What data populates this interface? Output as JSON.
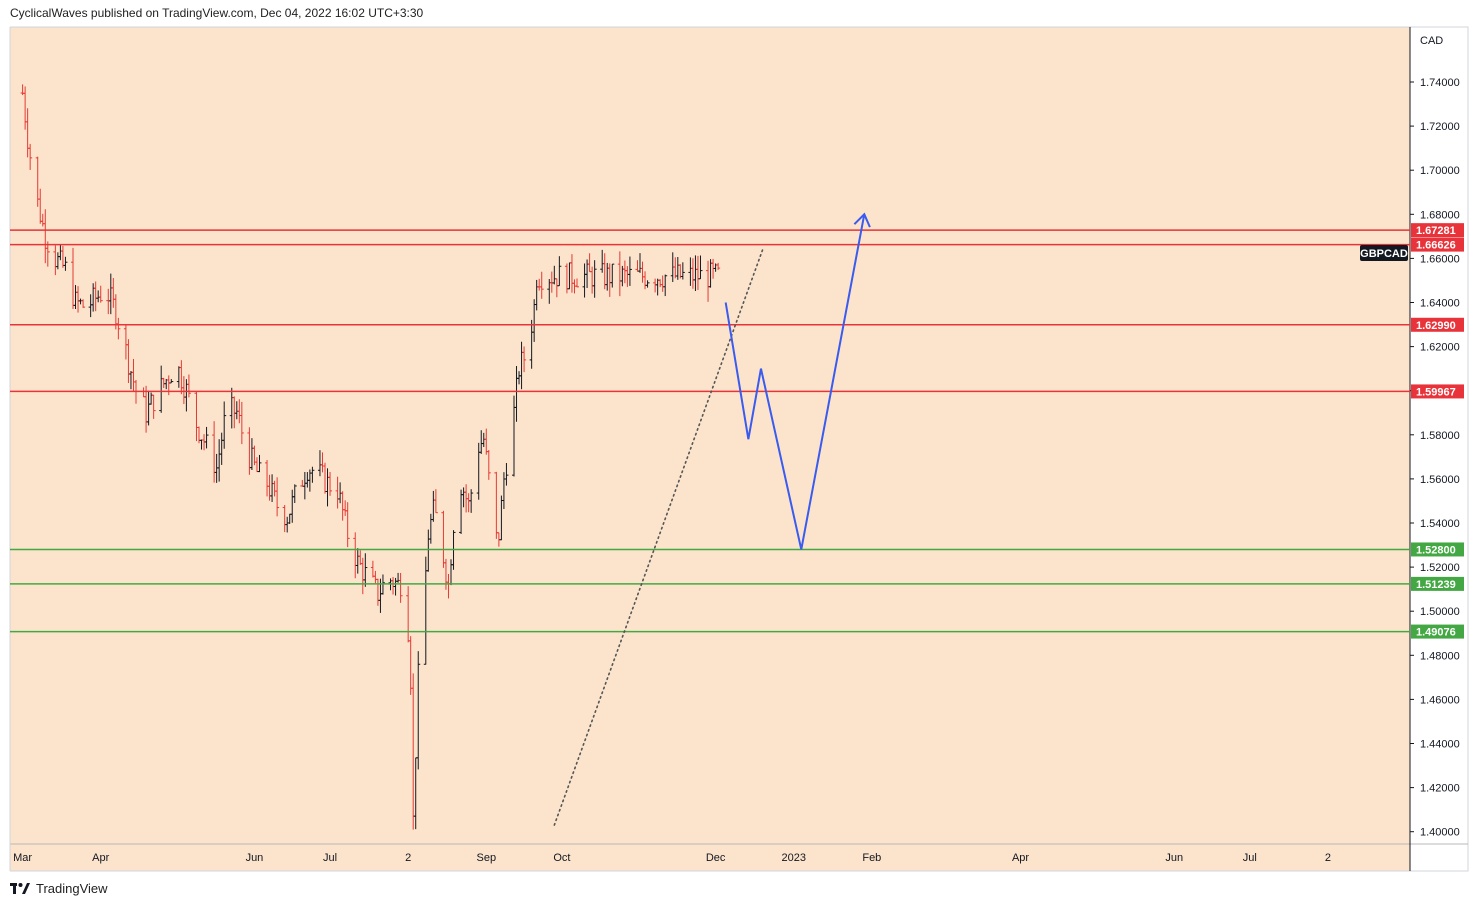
{
  "header": {
    "publish_line": "CyclicalWaves published on TradingView.com, Dec 04, 2022 16:02 UTC+3:30"
  },
  "footer": {
    "brand": "TradingView",
    "logo_icon": "tradingview-logo-icon"
  },
  "colors": {
    "plot_bg": "#fbe4cb",
    "up_candle": "#131722",
    "down_candle": "#e53935",
    "resistance": "#e8333a",
    "support": "#43a843",
    "projection": "#3a5bef",
    "trendline": "#555555"
  },
  "chart_data": {
    "type": "ohlc",
    "symbol": "GBPCAD",
    "currency_label": "CAD",
    "ylim": [
      1.38,
      1.77
    ],
    "y_ticks": [
      1.4,
      1.42,
      1.44,
      1.46,
      1.48,
      1.5,
      1.52,
      1.54,
      1.56,
      1.58,
      1.6,
      1.62,
      1.64,
      1.66,
      1.68,
      1.7,
      1.72,
      1.74
    ],
    "x_ticks": [
      "Mar",
      "Apr",
      "Jun",
      "Jul",
      "2",
      "Sep",
      "Oct",
      "Dec",
      "2023",
      "Feb",
      "Apr",
      "Jun",
      "Jul",
      "2"
    ],
    "price_path_start": "2022-03-01",
    "price_path_end": "2022-12-02",
    "price_path": [
      [
        0,
        1.735
      ],
      [
        2,
        1.715
      ],
      [
        5,
        1.69
      ],
      [
        9,
        1.67
      ],
      [
        13,
        1.66
      ],
      [
        17,
        1.655
      ],
      [
        21,
        1.64
      ],
      [
        25,
        1.638
      ],
      [
        29,
        1.642
      ],
      [
        33,
        1.646
      ],
      [
        37,
        1.636
      ],
      [
        41,
        1.618
      ],
      [
        45,
        1.6
      ],
      [
        49,
        1.59
      ],
      [
        53,
        1.598
      ],
      [
        57,
        1.605
      ],
      [
        61,
        1.612
      ],
      [
        65,
        1.6
      ],
      [
        69,
        1.585
      ],
      [
        73,
        1.575
      ],
      [
        77,
        1.565
      ],
      [
        81,
        1.592
      ],
      [
        85,
        1.59
      ],
      [
        89,
        1.573
      ],
      [
        93,
        1.563
      ],
      [
        97,
        1.558
      ],
      [
        101,
        1.548
      ],
      [
        105,
        1.543
      ],
      [
        109,
        1.555
      ],
      [
        113,
        1.565
      ],
      [
        117,
        1.563
      ],
      [
        121,
        1.558
      ],
      [
        125,
        1.555
      ],
      [
        129,
        1.535
      ],
      [
        133,
        1.522
      ],
      [
        137,
        1.515
      ],
      [
        141,
        1.508
      ],
      [
        145,
        1.515
      ],
      [
        149,
        1.512
      ],
      [
        152,
        1.515
      ],
      [
        154,
        1.47
      ],
      [
        155,
        1.405
      ],
      [
        157,
        1.47
      ],
      [
        159,
        1.5
      ],
      [
        161,
        1.535
      ],
      [
        163,
        1.545
      ],
      [
        165,
        1.54
      ],
      [
        167,
        1.525
      ],
      [
        169,
        1.512
      ],
      [
        171,
        1.54
      ],
      [
        173,
        1.56
      ],
      [
        175,
        1.555
      ],
      [
        177,
        1.548
      ],
      [
        179,
        1.56
      ],
      [
        181,
        1.575
      ],
      [
        183,
        1.578
      ],
      [
        185,
        1.56
      ],
      [
        187,
        1.53
      ],
      [
        189,
        1.535
      ],
      [
        191,
        1.56
      ],
      [
        193,
        1.575
      ],
      [
        195,
        1.59
      ],
      [
        197,
        1.61
      ],
      [
        199,
        1.615
      ],
      [
        201,
        1.623
      ],
      [
        203,
        1.638
      ],
      [
        204,
        1.652
      ]
    ],
    "horizontal_levels": [
      {
        "value": 1.67281,
        "label": "1.67281",
        "kind": "resistance"
      },
      {
        "value": 1.66626,
        "label": "1.66626",
        "kind": "resistance"
      },
      {
        "value": 1.6299,
        "label": "1.62990",
        "kind": "resistance"
      },
      {
        "value": 1.59967,
        "label": "1.59967",
        "kind": "resistance"
      },
      {
        "value": 1.528,
        "label": "1.52800",
        "kind": "support"
      },
      {
        "value": 1.51239,
        "label": "1.51239",
        "kind": "support"
      },
      {
        "value": 1.49076,
        "label": "1.49076",
        "kind": "support"
      }
    ],
    "trendline": {
      "points": [
        [
          "2022-09-28",
          1.403
        ],
        [
          "2022-12-20",
          1.665
        ]
      ],
      "style": "dotted"
    },
    "projection_path": [
      [
        "2022-12-05",
        1.64
      ],
      [
        "2022-12-14",
        1.578
      ],
      [
        "2022-12-19",
        1.61
      ],
      [
        "2023-01-04",
        1.528
      ],
      [
        "2023-01-29",
        1.68
      ]
    ],
    "grid": false,
    "legend_position": "right"
  }
}
